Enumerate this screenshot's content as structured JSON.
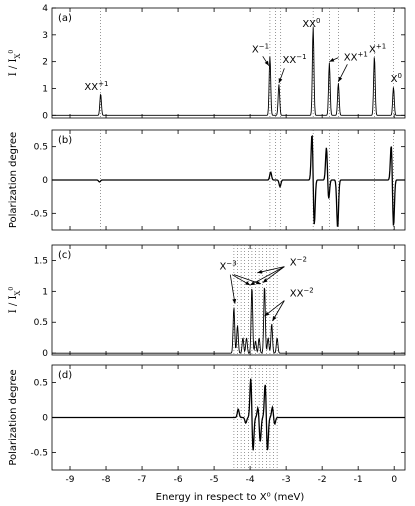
{
  "chart_data": [
    {
      "panel_label": "(a)",
      "type": "line",
      "ylabel": "I / I_X0",
      "ylabel_base": "I / I",
      "ylabel_sub": "X",
      "ylabel_sup": "0",
      "xlim": [
        -9.5,
        0.3
      ],
      "ylim": [
        -0.1,
        4
      ],
      "yticks": [
        0,
        1,
        2,
        3,
        4
      ],
      "peaks": [
        {
          "x": -8.15,
          "h": 0.8
        },
        {
          "x": -3.45,
          "h": 2.2
        },
        {
          "x": -3.2,
          "h": 1.15
        },
        {
          "x": -2.25,
          "h": 3.3
        },
        {
          "x": -1.8,
          "h": 1.95
        },
        {
          "x": -1.55,
          "h": 1.2
        },
        {
          "x": -0.55,
          "h": 2.2
        },
        {
          "x": -0.02,
          "h": 1.05
        }
      ],
      "vlines": [
        -8.15,
        -3.45,
        -3.3,
        -3.15,
        -2.25,
        -1.8,
        -1.55,
        -0.55,
        -0.02
      ],
      "annotations": [
        {
          "base": "XX",
          "sup": "+1",
          "x": -8.6,
          "y": 0.95
        },
        {
          "base": "X",
          "sup": "−1",
          "x": -3.95,
          "y": 2.35
        },
        {
          "base": "XX",
          "sup": "−1",
          "x": -3.1,
          "y": 1.95
        },
        {
          "base": "XX",
          "sup": "0",
          "x": -2.55,
          "y": 3.3
        },
        {
          "base": "XX",
          "sup": "+1",
          "x": -1.4,
          "y": 2.05
        },
        {
          "base": "X",
          "sup": "+1",
          "x": -0.7,
          "y": 2.35
        },
        {
          "base": "X",
          "sup": "0",
          "x": -0.1,
          "y": 1.25
        }
      ],
      "arrows": [
        {
          "x1": -3.65,
          "y1": 2.2,
          "x2": -3.48,
          "y2": 1.85
        },
        {
          "x1": -3.05,
          "y1": 1.75,
          "x2": -3.2,
          "y2": 1.2
        },
        {
          "x1": -1.55,
          "y1": 2.15,
          "x2": -1.8,
          "y2": 2.0
        },
        {
          "x1": -1.3,
          "y1": 1.9,
          "x2": -1.55,
          "y2": 1.25
        }
      ]
    },
    {
      "panel_label": "(b)",
      "type": "line",
      "ylabel": "Polarization degree",
      "xlim": [
        -9.5,
        0.3
      ],
      "ylim": [
        -0.75,
        0.75
      ],
      "yticks": [
        -0.5,
        0,
        0.5
      ],
      "features": [
        {
          "x": -8.15,
          "pos": -0.03,
          "neg": 0
        },
        {
          "x": -3.4,
          "pos": 0.12,
          "neg": 0
        },
        {
          "x": -3.2,
          "pos": 0,
          "neg": -0.1
        },
        {
          "x": -2.25,
          "pos": 0.72,
          "neg": -0.7
        },
        {
          "x": -1.85,
          "pos": 0.5,
          "neg": -0.3
        },
        {
          "x": -1.6,
          "pos": 0,
          "neg": -0.72
        },
        {
          "x": -0.05,
          "pos": 0.55,
          "neg": -0.72
        }
      ],
      "vlines": [
        -8.15,
        -3.45,
        -3.3,
        -3.15,
        -2.25,
        -1.8,
        -1.55,
        -0.55,
        -0.02
      ]
    },
    {
      "panel_label": "(c)",
      "type": "line",
      "ylabel": "I / I_X0",
      "ylabel_base": "I / I",
      "ylabel_sub": "X",
      "ylabel_sup": "0",
      "xlim": [
        -9.5,
        0.3
      ],
      "ylim": [
        -0.03,
        1.75
      ],
      "yticks": [
        0,
        0.5,
        1,
        1.5
      ],
      "peaks": [
        {
          "x": -4.45,
          "h": 0.75
        },
        {
          "x": -4.35,
          "h": 0.45
        },
        {
          "x": -4.2,
          "h": 0.25
        },
        {
          "x": -4.1,
          "h": 0.25
        },
        {
          "x": -3.95,
          "h": 1.08
        },
        {
          "x": -3.85,
          "h": 0.2
        },
        {
          "x": -3.75,
          "h": 0.25
        },
        {
          "x": -3.6,
          "h": 1.1
        },
        {
          "x": -3.5,
          "h": 0.25
        },
        {
          "x": -3.4,
          "h": 0.48
        },
        {
          "x": -3.25,
          "h": 0.25
        }
      ],
      "vlines": [
        -4.45,
        -4.35,
        -4.25,
        -4.15,
        -4.05,
        -3.95,
        -3.85,
        -3.75,
        -3.65,
        -3.55,
        -3.45,
        -3.35,
        -3.25
      ],
      "annotations": [
        {
          "base": "X",
          "sup": "−3",
          "x": -4.85,
          "y": 1.35
        },
        {
          "base": "X",
          "sup": "−2",
          "x": -2.9,
          "y": 1.42
        },
        {
          "base": "XX",
          "sup": "−2",
          "x": -2.9,
          "y": 0.92
        }
      ],
      "arrows": [
        {
          "x1": -4.55,
          "y1": 1.27,
          "x2": -4.42,
          "y2": 0.8
        },
        {
          "x1": -4.5,
          "y1": 1.27,
          "x2": -4.0,
          "y2": 1.1
        },
        {
          "x1": -4.45,
          "y1": 1.27,
          "x2": -3.7,
          "y2": 1.12
        },
        {
          "x1": -3.05,
          "y1": 1.4,
          "x2": -4.0,
          "y2": 1.1
        },
        {
          "x1": -3.05,
          "y1": 1.4,
          "x2": -3.65,
          "y2": 1.14
        },
        {
          "x1": -3.05,
          "y1": 1.4,
          "x2": -3.8,
          "y2": 1.3
        },
        {
          "x1": -3.05,
          "y1": 0.85,
          "x2": -3.38,
          "y2": 0.52
        },
        {
          "x1": -3.05,
          "y1": 0.85,
          "x2": -3.6,
          "y2": 0.6
        }
      ]
    },
    {
      "panel_label": "(d)",
      "type": "line",
      "ylabel": "Polarization degree",
      "xlim": [
        -9.5,
        0.3
      ],
      "ylim": [
        -0.75,
        0.75
      ],
      "yticks": [
        -0.5,
        0,
        0.5
      ],
      "features": [
        {
          "x": -4.3,
          "pos": 0.12,
          "neg": 0
        },
        {
          "x": -4.15,
          "pos": 0,
          "neg": -0.08
        },
        {
          "x": -3.95,
          "pos": 0.58,
          "neg": -0.5
        },
        {
          "x": -3.75,
          "pos": 0.15,
          "neg": -0.35
        },
        {
          "x": -3.55,
          "pos": 0.5,
          "neg": -0.5
        },
        {
          "x": -3.35,
          "pos": 0.15,
          "neg": -0.1
        }
      ],
      "vlines": [
        -4.45,
        -4.35,
        -4.25,
        -4.15,
        -4.05,
        -3.95,
        -3.85,
        -3.75,
        -3.65,
        -3.55,
        -3.45,
        -3.35,
        -3.25
      ]
    }
  ],
  "xaxis": {
    "label": "Energy in respect to X⁰ (meV)",
    "ticks": [
      -9,
      -8,
      -7,
      -6,
      -5,
      -4,
      -3,
      -2,
      -1,
      0
    ]
  }
}
